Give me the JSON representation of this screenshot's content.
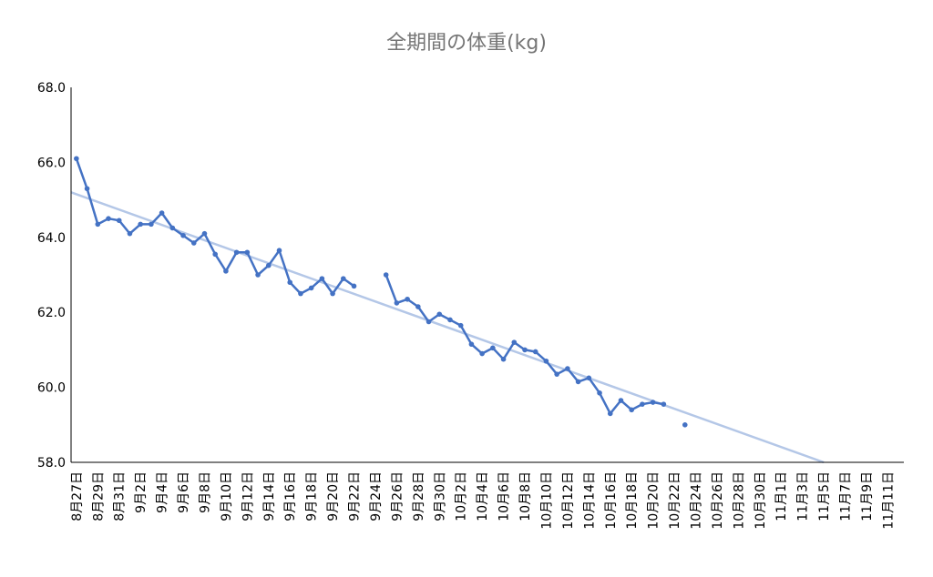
{
  "chart_data": {
    "type": "line",
    "title": "全期間の体重(kg)",
    "xlabel": "",
    "ylabel": "",
    "ylim": [
      58.0,
      68.0
    ],
    "yticks": [
      "58.0",
      "60.0",
      "62.0",
      "64.0",
      "66.0",
      "68.0"
    ],
    "start_date": "2020-08-27",
    "x_tick_labels": [
      "8月27日",
      "8月29日",
      "8月31日",
      "9月2日",
      "9月4日",
      "9月6日",
      "9月8日",
      "9月10日",
      "9月12日",
      "9月14日",
      "9月16日",
      "9月18日",
      "9月20日",
      "9月22日",
      "9月24日",
      "9月26日",
      "9月28日",
      "9月30日",
      "10月2日",
      "10月4日",
      "10月6日",
      "10月8日",
      "10月10日",
      "10月12日",
      "10月14日",
      "10月16日",
      "10月18日",
      "10月20日",
      "10月22日",
      "10月24日",
      "10月26日",
      "10月28日",
      "10月30日",
      "11月1日",
      "11月3日",
      "11月5日",
      "11月7日",
      "11月9日",
      "11月11日"
    ],
    "series": [
      {
        "color": "#4472c4",
        "values": [
          66.1,
          65.3,
          64.35,
          64.5,
          64.45,
          64.1,
          64.35,
          64.35,
          64.65,
          64.25,
          64.05,
          63.85,
          64.1,
          63.55,
          63.1,
          63.6,
          63.6,
          63.0,
          63.25,
          63.65,
          62.8,
          62.5,
          62.65,
          62.9,
          62.5,
          62.9,
          62.7,
          null,
          null,
          63.0,
          62.25,
          62.35,
          62.15,
          61.75,
          61.95,
          61.8,
          61.65,
          61.15,
          60.9,
          61.05,
          60.75,
          61.2,
          61.0,
          60.95,
          60.7,
          60.35,
          60.5,
          60.15,
          60.25,
          59.85,
          59.3,
          59.65,
          59.4,
          59.55,
          59.6,
          59.55,
          null,
          59.0
        ]
      }
    ],
    "trendline": {
      "color": "#b4c7e7",
      "from": [
        0,
        65.2
      ],
      "to": [
        70,
        58.0
      ]
    }
  }
}
